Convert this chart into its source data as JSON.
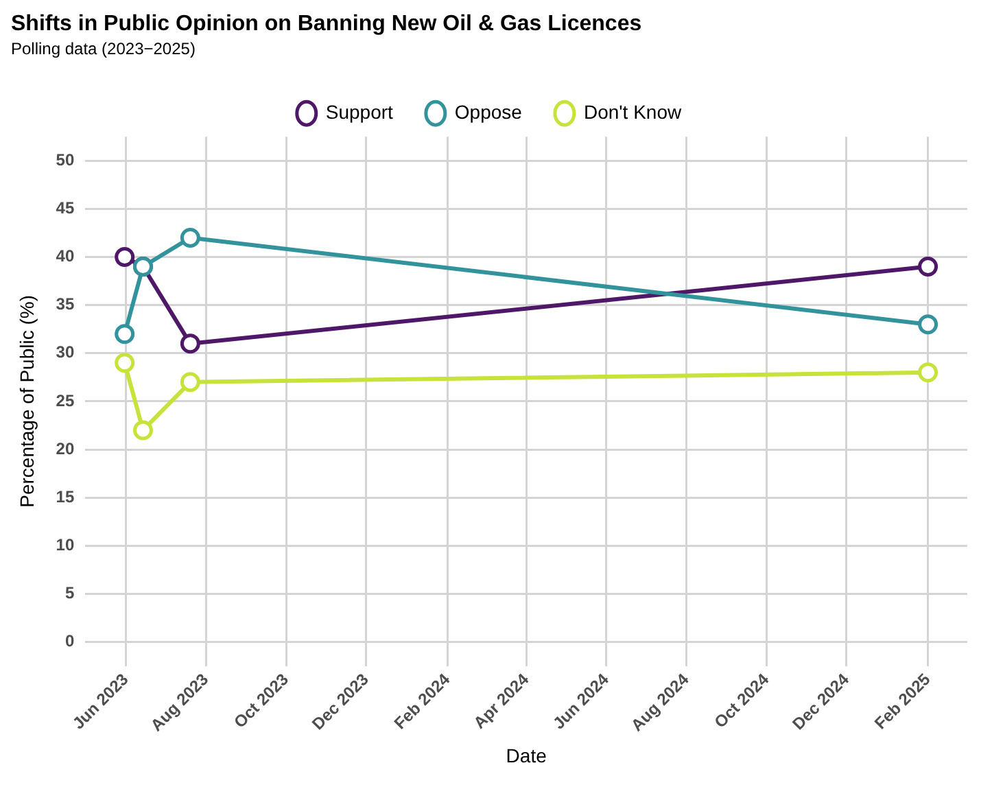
{
  "chart_data": {
    "type": "line",
    "title": "Shifts in Public Opinion on Banning New Oil & Gas Licences",
    "subtitle": "Polling data (2023−2025)",
    "xlabel": "Date",
    "ylabel": "Percentage of Public (%)",
    "x": [
      "2023-05-31",
      "2023-06-14",
      "2023-07-20",
      "2025-02-01"
    ],
    "series": [
      {
        "name": "Support",
        "color": "#4f1767",
        "values": [
          40,
          39,
          31,
          39
        ]
      },
      {
        "name": "Oppose",
        "color": "#33939c",
        "values": [
          32,
          39,
          42,
          33
        ]
      },
      {
        "name": "Don't Know",
        "color": "#c5e33a",
        "values": [
          29,
          22,
          27,
          28
        ]
      }
    ],
    "xlim": [
      "2023-05-01",
      "2025-03-03"
    ],
    "xticks": [
      {
        "value": "2023-06-01",
        "label": "Jun 2023"
      },
      {
        "value": "2023-08-01",
        "label": "Aug 2023"
      },
      {
        "value": "2023-10-01",
        "label": "Oct 2023"
      },
      {
        "value": "2023-12-01",
        "label": "Dec 2023"
      },
      {
        "value": "2024-02-01",
        "label": "Feb 2024"
      },
      {
        "value": "2024-04-01",
        "label": "Apr 2024"
      },
      {
        "value": "2024-06-01",
        "label": "Jun 2024"
      },
      {
        "value": "2024-08-01",
        "label": "Aug 2024"
      },
      {
        "value": "2024-10-01",
        "label": "Oct 2024"
      },
      {
        "value": "2024-12-01",
        "label": "Dec 2024"
      },
      {
        "value": "2025-02-01",
        "label": "Feb 2025"
      }
    ],
    "ylim": [
      -2.5,
      52.5
    ],
    "yticks": [
      0,
      5,
      10,
      15,
      20,
      25,
      30,
      35,
      40,
      45,
      50
    ],
    "grid": true,
    "legend": "top",
    "marker": "circle",
    "line_style": "solid"
  }
}
